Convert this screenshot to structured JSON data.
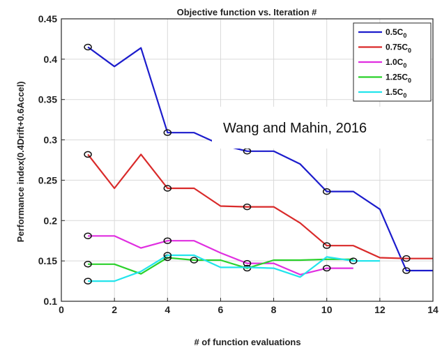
{
  "chart_data": {
    "type": "line",
    "title": "Objective function vs. Iteration #",
    "xlabel": "# of function evaluations",
    "ylabel": "Performance index(0.4Drift+0.6Accel)",
    "xlim": [
      0,
      14
    ],
    "ylim": [
      0.1,
      0.45
    ],
    "xticks": [
      "0",
      "2",
      "4",
      "6",
      "8",
      "10",
      "12",
      "14"
    ],
    "yticks": [
      "0.1",
      "0.15",
      "0.2",
      "0.25",
      "0.3",
      "0.35",
      "0.4",
      "0.45"
    ],
    "grid": true,
    "legend_position": "top-right",
    "annotation": "Wang and Mahin, 2016",
    "series": [
      {
        "name": "0.5C",
        "label_base": "0.5C",
        "label_sub": "0",
        "color": "#1c1ccc",
        "x": [
          1,
          2,
          3,
          4,
          5,
          6,
          7,
          8,
          9,
          10,
          11,
          12,
          13,
          14
        ],
        "y": [
          0.415,
          0.391,
          0.414,
          0.309,
          0.309,
          0.294,
          0.286,
          0.286,
          0.27,
          0.236,
          0.236,
          0.214,
          0.138,
          0.138
        ],
        "markers_x": [
          1,
          4,
          7,
          10,
          13
        ],
        "markers_y": [
          0.415,
          0.309,
          0.286,
          0.236,
          0.138
        ]
      },
      {
        "name": "0.75C",
        "label_base": "0.75C",
        "label_sub": "0",
        "color": "#d92a2a",
        "x": [
          1,
          2,
          3,
          4,
          5,
          6,
          7,
          8,
          9,
          10,
          11,
          12,
          13,
          14
        ],
        "y": [
          0.282,
          0.24,
          0.282,
          0.24,
          0.24,
          0.218,
          0.217,
          0.217,
          0.197,
          0.169,
          0.169,
          0.154,
          0.153,
          0.153
        ],
        "markers_x": [
          1,
          4,
          7,
          10,
          13
        ],
        "markers_y": [
          0.282,
          0.24,
          0.217,
          0.169,
          0.153
        ]
      },
      {
        "name": "1.0C",
        "label_base": "1.0C",
        "label_sub": "0",
        "color": "#e02ee0",
        "x": [
          1,
          2,
          3,
          4,
          5,
          6,
          7,
          8,
          9,
          10,
          11
        ],
        "y": [
          0.181,
          0.181,
          0.166,
          0.175,
          0.175,
          0.16,
          0.147,
          0.147,
          0.133,
          0.141,
          0.141
        ],
        "markers_x": [
          1,
          4,
          7,
          10
        ],
        "markers_y": [
          0.181,
          0.175,
          0.147,
          0.141
        ]
      },
      {
        "name": "1.25C",
        "label_base": "1.25C",
        "label_sub": "0",
        "color": "#2ad12a",
        "x": [
          1,
          2,
          3,
          4,
          5,
          6,
          7,
          8,
          9,
          10,
          11
        ],
        "y": [
          0.146,
          0.146,
          0.134,
          0.154,
          0.151,
          0.151,
          0.141,
          0.151,
          0.151,
          0.152,
          0.152
        ],
        "markers_x": [
          1,
          4,
          5,
          7
        ],
        "markers_y": [
          0.146,
          0.154,
          0.151,
          0.141
        ]
      },
      {
        "name": "1.5C",
        "label_base": "1.5C",
        "label_sub": "0",
        "color": "#22e4ec",
        "x": [
          1,
          2,
          3,
          4,
          5,
          6,
          7,
          8,
          9,
          10,
          11,
          12
        ],
        "y": [
          0.125,
          0.125,
          0.137,
          0.157,
          0.157,
          0.142,
          0.142,
          0.141,
          0.13,
          0.155,
          0.15,
          0.15
        ],
        "markers_x": [
          1,
          4,
          11
        ],
        "markers_y": [
          0.125,
          0.157,
          0.15
        ]
      }
    ]
  }
}
